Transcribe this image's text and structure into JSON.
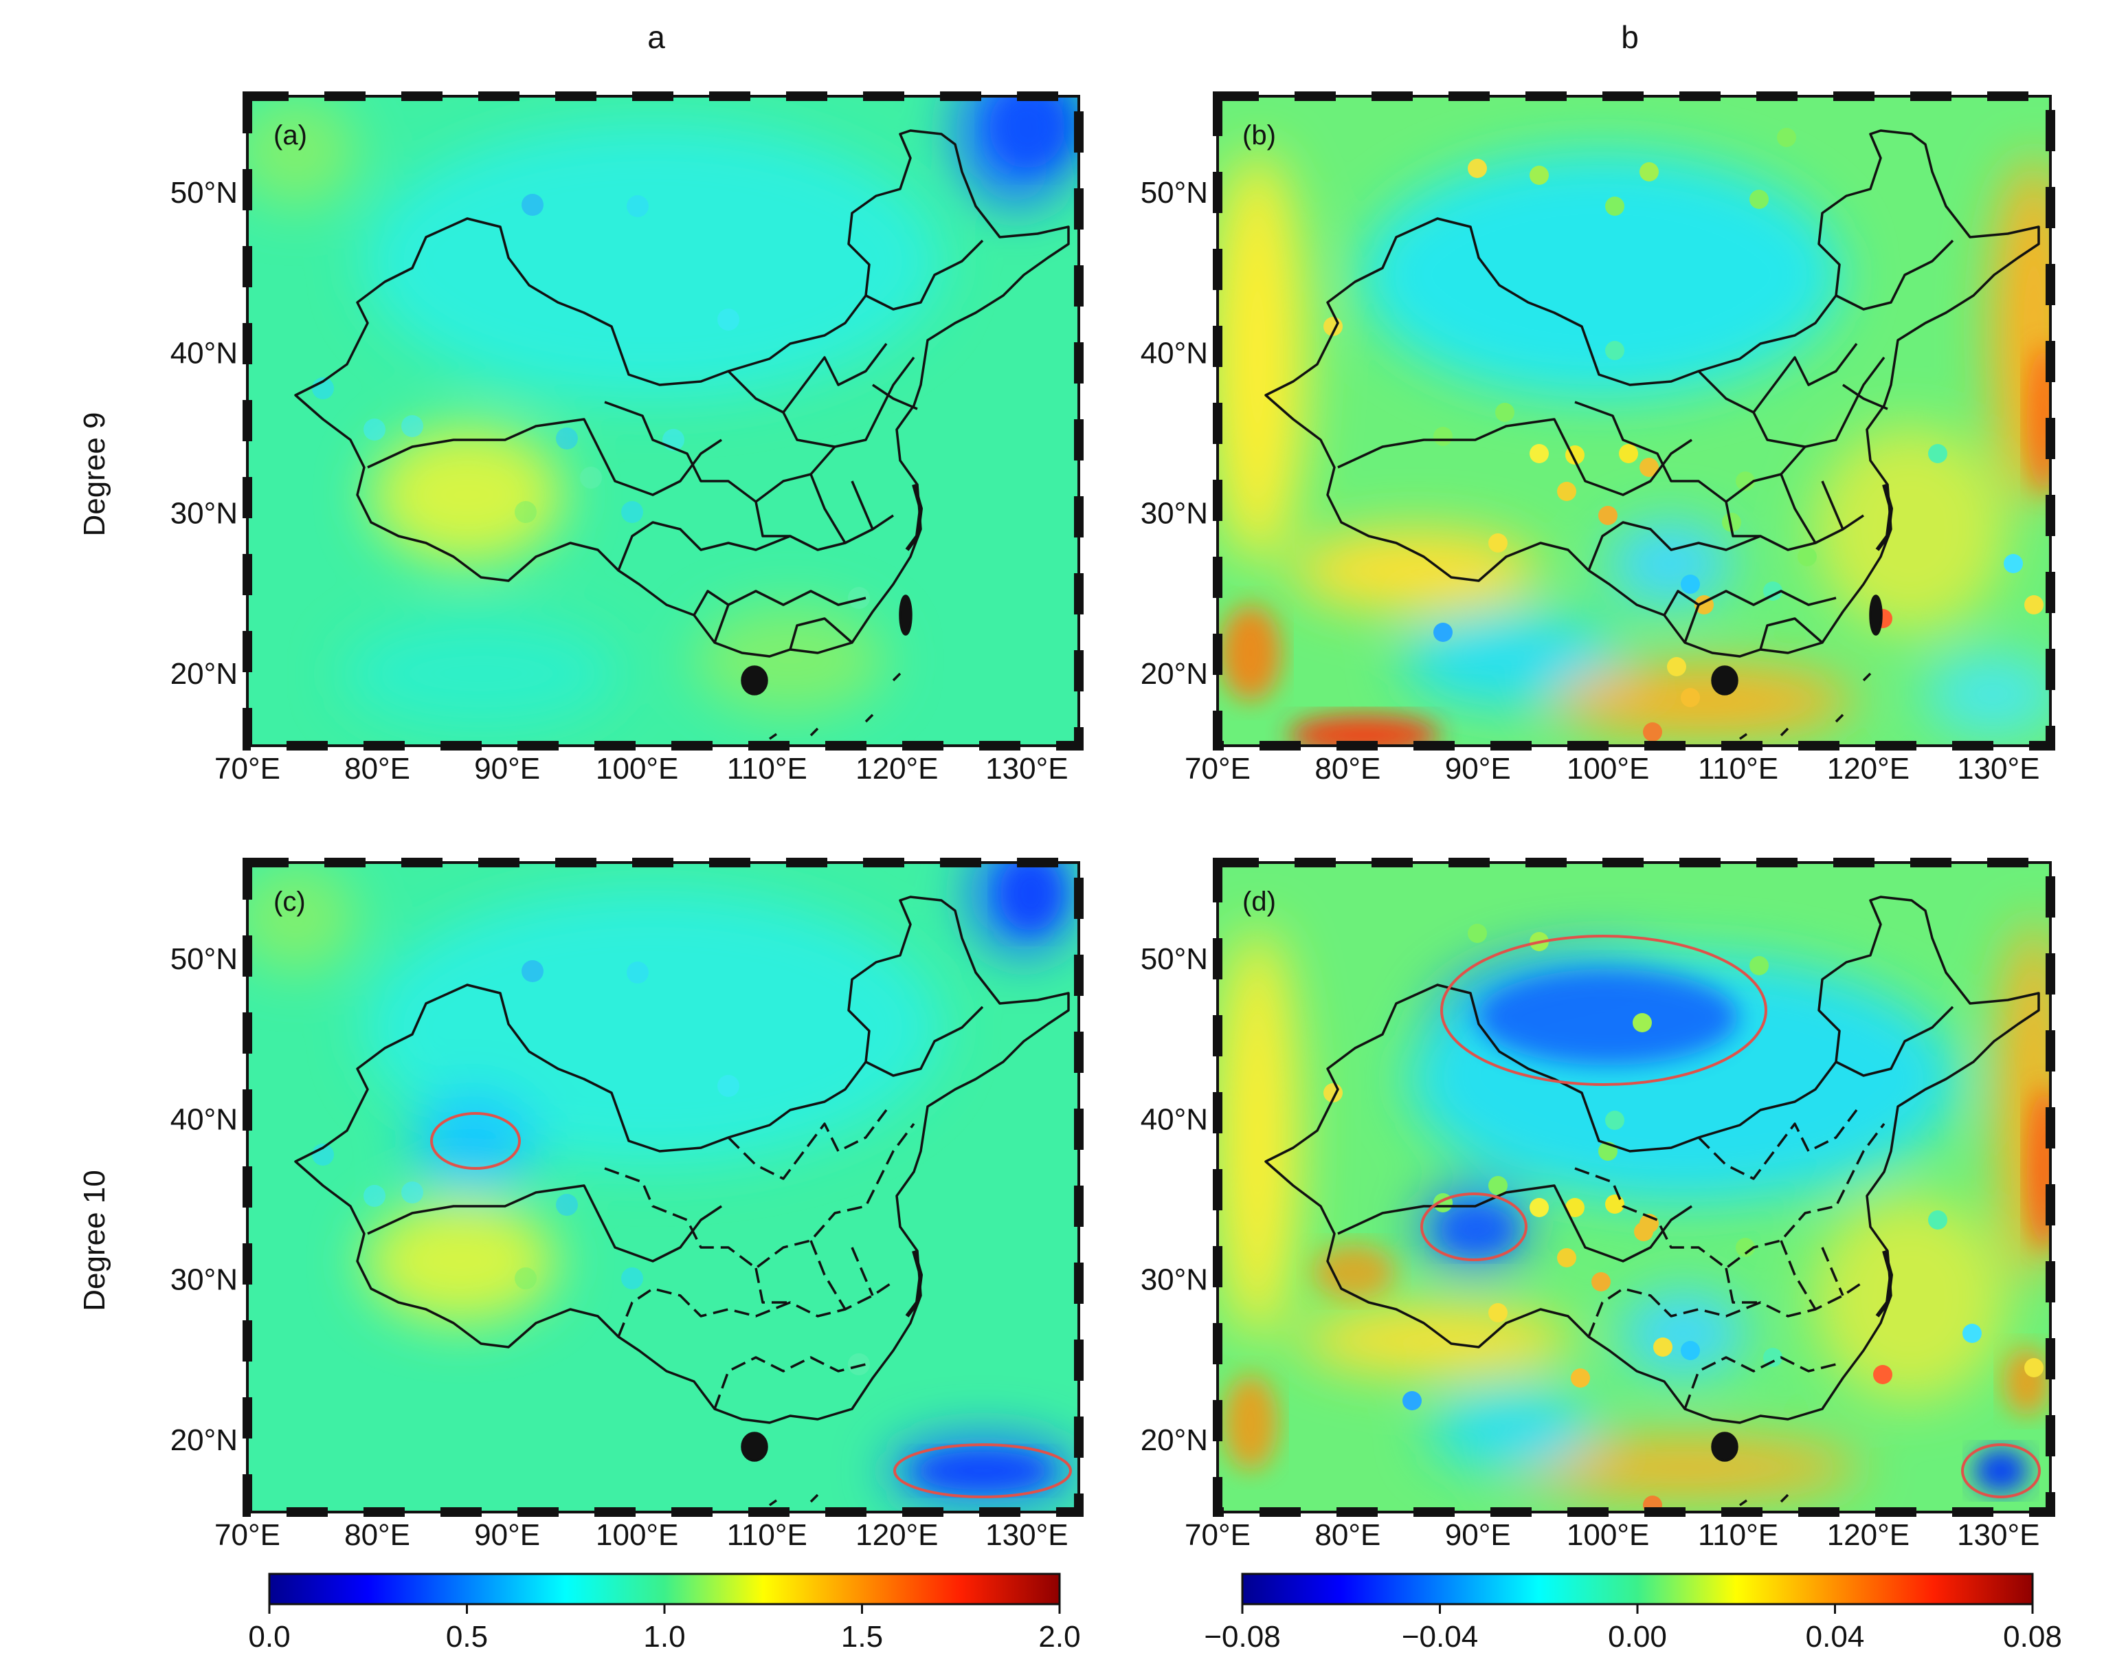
{
  "columns": [
    "a",
    "b"
  ],
  "rows": [
    "Degree 9",
    "Degree 10"
  ],
  "panels": [
    {
      "tag": "(a)",
      "scale": "ratio"
    },
    {
      "tag": "(b)",
      "scale": "diff"
    },
    {
      "tag": "(c)",
      "scale": "ratio"
    },
    {
      "tag": "(d)",
      "scale": "diff"
    }
  ],
  "lat_ticks": [
    "50°N",
    "40°N",
    "30°N",
    "20°N"
  ],
  "lon_ticks": [
    "70°E",
    "80°E",
    "90°E",
    "100°E",
    "110°E",
    "120°E",
    "130°E"
  ],
  "colorbars": {
    "ratio": {
      "ticks": [
        "0.0",
        "0.5",
        "1.0",
        "1.5",
        "2.0"
      ],
      "min": 0.0,
      "max": 2.0
    },
    "diff": {
      "ticks": [
        "−0.08",
        "−0.04",
        "0.00",
        "0.04",
        "0.08"
      ],
      "min": -0.08,
      "max": 0.08
    }
  },
  "colors": {
    "ellipse": "#e0524a",
    "frame": "#111111"
  }
}
